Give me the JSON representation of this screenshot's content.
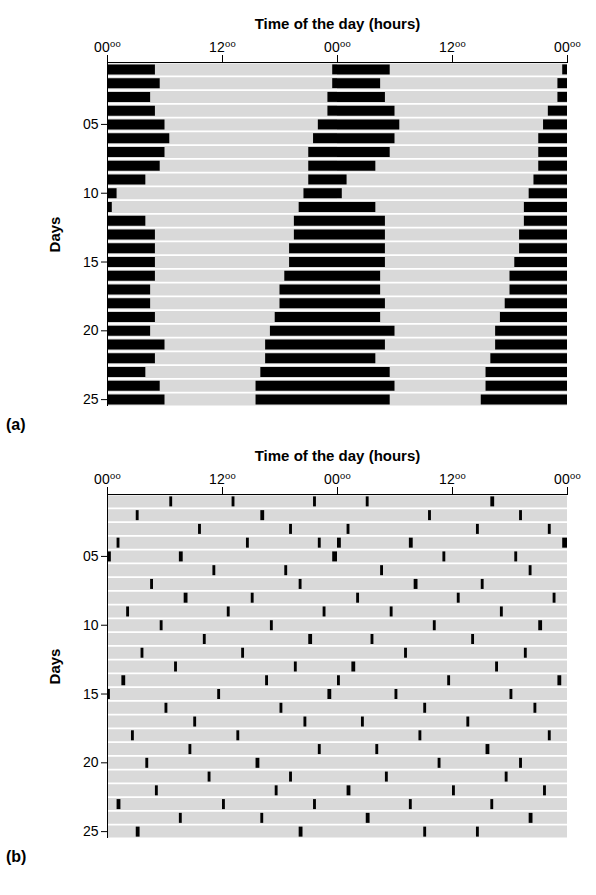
{
  "chart_data": [
    {
      "type": "actogram",
      "panel": "(a)",
      "xlabel": "Time of the day (hours)",
      "ylabel": "Days",
      "xlim": [
        0,
        48
      ],
      "xticks": [
        {
          "value": 0,
          "label": "00⁰⁰"
        },
        {
          "value": 12,
          "label": "12⁰⁰"
        },
        {
          "value": 24,
          "label": "00⁰⁰"
        },
        {
          "value": 36,
          "label": "12⁰⁰"
        },
        {
          "value": 48,
          "label": "00⁰⁰"
        }
      ],
      "ylim": [
        0.5,
        25.5
      ],
      "yticks": [
        {
          "value": 5,
          "label": "05"
        },
        10,
        15,
        20,
        25
      ],
      "color": "#000000",
      "rows": [
        {
          "day": 1,
          "bouts": [
            [
              0,
              5
            ],
            [
              23.5,
              24
            ],
            [
              24,
              29.5
            ],
            [
              47.5,
              48
            ]
          ]
        },
        {
          "day": 2,
          "bouts": [
            [
              0,
              5.5
            ],
            [
              23.5,
              24
            ],
            [
              24,
              28.5
            ],
            [
              47,
              48
            ]
          ]
        },
        {
          "day": 3,
          "bouts": [
            [
              0,
              4.5
            ],
            [
              23,
              24
            ],
            [
              24,
              29
            ],
            [
              47,
              48
            ]
          ]
        },
        {
          "day": 4,
          "bouts": [
            [
              0,
              5
            ],
            [
              23,
              24
            ],
            [
              24,
              30
            ],
            [
              46,
              48
            ]
          ]
        },
        {
          "day": 5,
          "bouts": [
            [
              0,
              6
            ],
            [
              22,
              24
            ],
            [
              24,
              30.5
            ],
            [
              45.5,
              48
            ]
          ]
        },
        {
          "day": 6,
          "bouts": [
            [
              0,
              6.5
            ],
            [
              21.5,
              24
            ],
            [
              24,
              30
            ],
            [
              45,
              48
            ]
          ]
        },
        {
          "day": 7,
          "bouts": [
            [
              0,
              6
            ],
            [
              21,
              24
            ],
            [
              24,
              29.5
            ],
            [
              45,
              48
            ]
          ]
        },
        {
          "day": 8,
          "bouts": [
            [
              0,
              5.5
            ],
            [
              21,
              24
            ],
            [
              24,
              28
            ],
            [
              45,
              48
            ]
          ]
        },
        {
          "day": 9,
          "bouts": [
            [
              0,
              4
            ],
            [
              21,
              24
            ],
            [
              24,
              25
            ],
            [
              44.5,
              48
            ]
          ]
        },
        {
          "day": 10,
          "bouts": [
            [
              0,
              1
            ],
            [
              20.5,
              24
            ],
            [
              24,
              24.5
            ],
            [
              44,
              48
            ]
          ]
        },
        {
          "day": 11,
          "bouts": [
            [
              0,
              0.5
            ],
            [
              20,
              24
            ],
            [
              24,
              28
            ],
            [
              43.5,
              48
            ]
          ]
        },
        {
          "day": 12,
          "bouts": [
            [
              0,
              4
            ],
            [
              19.5,
              24
            ],
            [
              24,
              29
            ],
            [
              43.5,
              48
            ]
          ]
        },
        {
          "day": 13,
          "bouts": [
            [
              0,
              5
            ],
            [
              19.5,
              24
            ],
            [
              24,
              29
            ],
            [
              43,
              48
            ]
          ]
        },
        {
          "day": 14,
          "bouts": [
            [
              0,
              5
            ],
            [
              19,
              24
            ],
            [
              24,
              29
            ],
            [
              43,
              48
            ]
          ]
        },
        {
          "day": 15,
          "bouts": [
            [
              0,
              5
            ],
            [
              19,
              24
            ],
            [
              24,
              29
            ],
            [
              42.5,
              48
            ]
          ]
        },
        {
          "day": 16,
          "bouts": [
            [
              0,
              5
            ],
            [
              18.5,
              24
            ],
            [
              24,
              28.5
            ],
            [
              42,
              48
            ]
          ]
        },
        {
          "day": 17,
          "bouts": [
            [
              0,
              4.5
            ],
            [
              18,
              24
            ],
            [
              24,
              28.5
            ],
            [
              42,
              48
            ]
          ]
        },
        {
          "day": 18,
          "bouts": [
            [
              0,
              4.5
            ],
            [
              18,
              24
            ],
            [
              24,
              29
            ],
            [
              41.5,
              48
            ]
          ]
        },
        {
          "day": 19,
          "bouts": [
            [
              0,
              5
            ],
            [
              17.5,
              24
            ],
            [
              24,
              28.5
            ],
            [
              41,
              48
            ]
          ]
        },
        {
          "day": 20,
          "bouts": [
            [
              0,
              4.5
            ],
            [
              17,
              24
            ],
            [
              24,
              30
            ],
            [
              40.5,
              48
            ]
          ]
        },
        {
          "day": 21,
          "bouts": [
            [
              0,
              6
            ],
            [
              16.5,
              24
            ],
            [
              24,
              29
            ],
            [
              40.5,
              48
            ]
          ]
        },
        {
          "day": 22,
          "bouts": [
            [
              0,
              5
            ],
            [
              16.5,
              24
            ],
            [
              24,
              28
            ],
            [
              40,
              48
            ]
          ]
        },
        {
          "day": 23,
          "bouts": [
            [
              0,
              4
            ],
            [
              16,
              24
            ],
            [
              24,
              29.5
            ],
            [
              39.5,
              48
            ]
          ]
        },
        {
          "day": 24,
          "bouts": [
            [
              0,
              5.5
            ],
            [
              15.5,
              24
            ],
            [
              24,
              30
            ],
            [
              39.5,
              48
            ]
          ]
        },
        {
          "day": 25,
          "bouts": [
            [
              0,
              6
            ],
            [
              15.5,
              24
            ],
            [
              24,
              29.5
            ],
            [
              39,
              48
            ]
          ]
        }
      ]
    },
    {
      "type": "actogram",
      "panel": "(b)",
      "xlabel": "Time of the day (hours)",
      "ylabel": "Days",
      "xlim": [
        0,
        48
      ],
      "xticks": [
        {
          "value": 0,
          "label": "00⁰⁰"
        },
        {
          "value": 12,
          "label": "12⁰⁰"
        },
        {
          "value": 24,
          "label": "00⁰⁰"
        },
        {
          "value": 36,
          "label": "12⁰⁰"
        },
        {
          "value": 48,
          "label": "00⁰⁰"
        }
      ],
      "ylim": [
        0.5,
        25.5
      ],
      "yticks": [
        {
          "value": 5,
          "label": "05"
        },
        10,
        15,
        20,
        25
      ],
      "color": "#000000",
      "rows": [
        {
          "day": 1,
          "bouts": [
            [
              6.5,
              6.8
            ],
            [
              13,
              13.3
            ],
            [
              21.5,
              21.8
            ],
            [
              27,
              27.3
            ],
            [
              40,
              40.4
            ]
          ]
        },
        {
          "day": 2,
          "bouts": [
            [
              3,
              3.3
            ],
            [
              16,
              16.4
            ],
            [
              33.5,
              33.8
            ],
            [
              43,
              43.3
            ]
          ]
        },
        {
          "day": 3,
          "bouts": [
            [
              9.5,
              9.8
            ],
            [
              19,
              19.3
            ],
            [
              25,
              25.3
            ],
            [
              38.5,
              38.8
            ],
            [
              46,
              46.3
            ]
          ]
        },
        {
          "day": 4,
          "bouts": [
            [
              1,
              1.3
            ],
            [
              14.5,
              14.8
            ],
            [
              22,
              22.3
            ],
            [
              24,
              24.4
            ],
            [
              31.5,
              31.9
            ],
            [
              47.5,
              48
            ]
          ]
        },
        {
          "day": 5,
          "bouts": [
            [
              0,
              0.4
            ],
            [
              7.5,
              7.9
            ],
            [
              23.5,
              24
            ],
            [
              35,
              35.3
            ],
            [
              42.5,
              42.8
            ]
          ]
        },
        {
          "day": 6,
          "bouts": [
            [
              11,
              11.3
            ],
            [
              18.5,
              18.8
            ],
            [
              28.5,
              28.8
            ],
            [
              44,
              44.3
            ]
          ]
        },
        {
          "day": 7,
          "bouts": [
            [
              4.5,
              4.8
            ],
            [
              20,
              20.3
            ],
            [
              32,
              32.4
            ],
            [
              39,
              39.3
            ]
          ]
        },
        {
          "day": 8,
          "bouts": [
            [
              8,
              8.4
            ],
            [
              15,
              15.3
            ],
            [
              26,
              26.3
            ],
            [
              36.5,
              36.8
            ],
            [
              46.5,
              46.8
            ]
          ]
        },
        {
          "day": 9,
          "bouts": [
            [
              2,
              2.3
            ],
            [
              12.5,
              12.8
            ],
            [
              22.5,
              22.8
            ],
            [
              29.5,
              29.8
            ],
            [
              41,
              41.3
            ]
          ]
        },
        {
          "day": 10,
          "bouts": [
            [
              5.5,
              5.8
            ],
            [
              17,
              17.3
            ],
            [
              34,
              34.3
            ],
            [
              45,
              45.4
            ]
          ]
        },
        {
          "day": 11,
          "bouts": [
            [
              10,
              10.3
            ],
            [
              21,
              21.4
            ],
            [
              27.5,
              27.8
            ],
            [
              38,
              38.3
            ]
          ]
        },
        {
          "day": 12,
          "bouts": [
            [
              3.5,
              3.8
            ],
            [
              14,
              14.3
            ],
            [
              31,
              31.3
            ],
            [
              43.5,
              43.8
            ]
          ]
        },
        {
          "day": 13,
          "bouts": [
            [
              7,
              7.3
            ],
            [
              19.5,
              19.8
            ],
            [
              25.5,
              25.9
            ],
            [
              40.5,
              40.8
            ]
          ]
        },
        {
          "day": 14,
          "bouts": [
            [
              1.5,
              1.9
            ],
            [
              16.5,
              16.8
            ],
            [
              24,
              24.3
            ],
            [
              35.5,
              35.8
            ],
            [
              47,
              47.4
            ]
          ]
        },
        {
          "day": 15,
          "bouts": [
            [
              0,
              0.3
            ],
            [
              11.5,
              11.8
            ],
            [
              23,
              23.4
            ],
            [
              30,
              30.3
            ],
            [
              42,
              42.3
            ]
          ]
        },
        {
          "day": 16,
          "bouts": [
            [
              6,
              6.3
            ],
            [
              18,
              18.3
            ],
            [
              33,
              33.3
            ],
            [
              44.5,
              44.8
            ]
          ]
        },
        {
          "day": 17,
          "bouts": [
            [
              9,
              9.3
            ],
            [
              20.5,
              20.8
            ],
            [
              26.5,
              26.8
            ],
            [
              37.5,
              37.8
            ]
          ]
        },
        {
          "day": 18,
          "bouts": [
            [
              2.5,
              2.8
            ],
            [
              13.5,
              13.8
            ],
            [
              32.5,
              32.8
            ],
            [
              46,
              46.3
            ]
          ]
        },
        {
          "day": 19,
          "bouts": [
            [
              8.5,
              8.8
            ],
            [
              22,
              22.3
            ],
            [
              28,
              28.3
            ],
            [
              39.5,
              39.9
            ]
          ]
        },
        {
          "day": 20,
          "bouts": [
            [
              4,
              4.3
            ],
            [
              15.5,
              15.9
            ],
            [
              34.5,
              34.8
            ],
            [
              43,
              43.3
            ]
          ]
        },
        {
          "day": 21,
          "bouts": [
            [
              10.5,
              10.8
            ],
            [
              19,
              19.3
            ],
            [
              29,
              29.3
            ],
            [
              41.5,
              41.8
            ]
          ]
        },
        {
          "day": 22,
          "bouts": [
            [
              5,
              5.3
            ],
            [
              17.5,
              17.8
            ],
            [
              25,
              25.4
            ],
            [
              36,
              36.3
            ],
            [
              45.5,
              45.8
            ]
          ]
        },
        {
          "day": 23,
          "bouts": [
            [
              1,
              1.4
            ],
            [
              12,
              12.3
            ],
            [
              21.5,
              21.8
            ],
            [
              31.5,
              31.8
            ],
            [
              40,
              40.3
            ]
          ]
        },
        {
          "day": 24,
          "bouts": [
            [
              7.5,
              7.8
            ],
            [
              16,
              16.3
            ],
            [
              27,
              27.4
            ],
            [
              44,
              44.4
            ]
          ]
        },
        {
          "day": 25,
          "bouts": [
            [
              3,
              3.4
            ],
            [
              20,
              20.4
            ],
            [
              33,
              33.3
            ],
            [
              38.5,
              38.8
            ]
          ]
        }
      ]
    }
  ]
}
